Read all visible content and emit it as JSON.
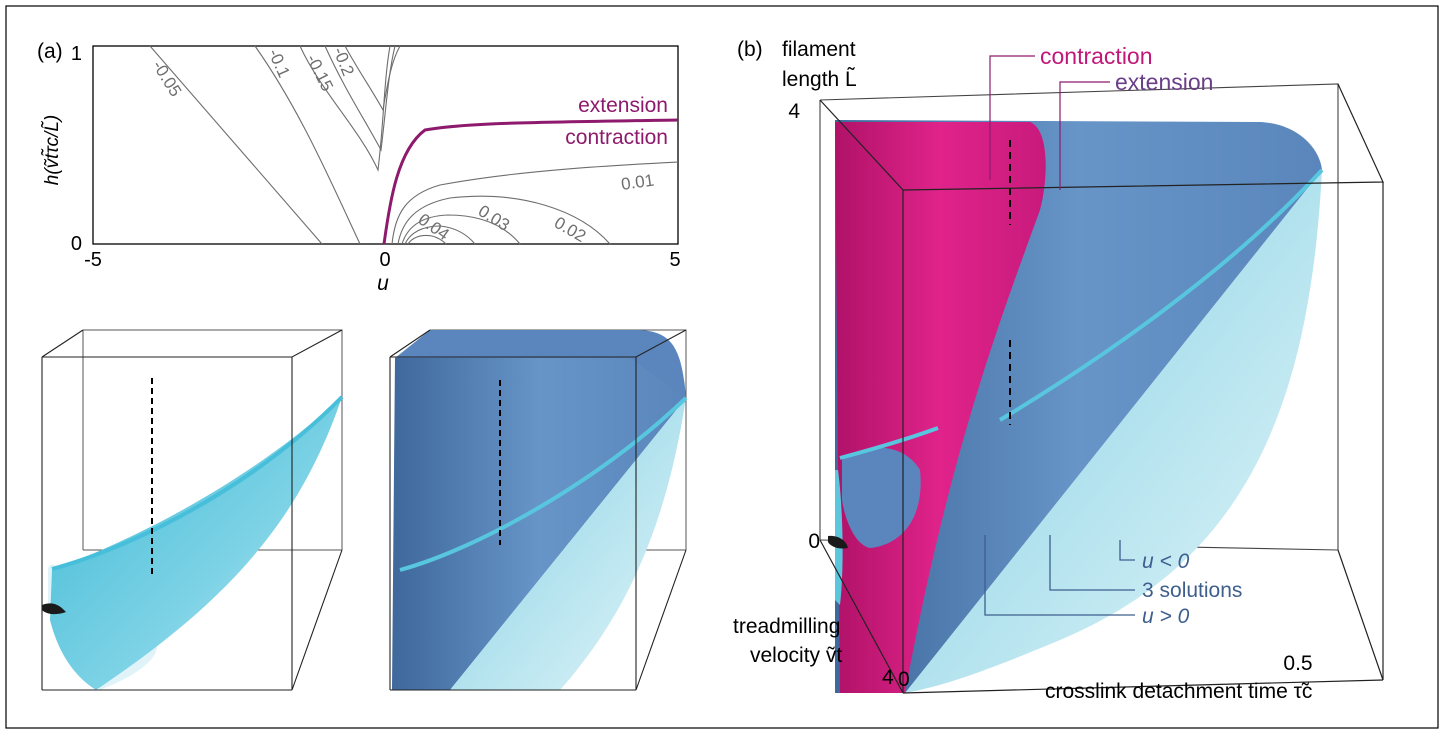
{
  "panel_a": {
    "label": "(a)",
    "y_axis_label": "h(ṽtτ̃c/L̃)",
    "x_axis_label": "u",
    "curve_labels": {
      "extension": "extension",
      "contraction": "contraction"
    },
    "colors": {
      "main_curve": "#8e1a6e",
      "contour": "#7a7a7a"
    }
  },
  "panel_b": {
    "label": "(b)",
    "z_axis_label_line1": "filament",
    "z_axis_label_line2": "length L̃",
    "y_axis_label_line1": "treadmilling",
    "y_axis_label_line2": "velocity ṽt",
    "x_axis_label": "crosslink detachment time τ̃c",
    "tick_z_top": "4",
    "tick_z_bottom": "0",
    "tick_y_front": "4",
    "tick_x_origin": "0",
    "tick_x_mid": "0.5",
    "legend": {
      "contraction": "contraction",
      "extension": "extension",
      "u_neg": "u < 0",
      "three_solutions": "3 solutions",
      "u_pos": "u > 0"
    },
    "colors": {
      "magenta": "#d4197f",
      "blue": "#5b86bd",
      "cyan": "#4cc5df",
      "light_cyan": "#b8e6f0"
    }
  },
  "chart_data": [
    {
      "type": "line",
      "panel": "(a)",
      "xlabel": "u",
      "ylabel": "h(ṽtτ̃c/L̃)",
      "xlim": [
        -5,
        5
      ],
      "ylim": [
        0,
        1
      ],
      "x_ticks": [
        "-5",
        "0",
        "5"
      ],
      "y_ticks": [
        "0",
        "1"
      ],
      "contour_levels": [
        "-0.05",
        "-0.1",
        "-0.15",
        "-0.2",
        "0.01",
        "0.02",
        "0.03",
        "0.04"
      ],
      "series": [
        {
          "name": "extension",
          "x": [
            0,
            0.1,
            0.3,
            0.5,
            1,
            2,
            3,
            4,
            5
          ],
          "y": [
            0,
            0.2,
            0.42,
            0.52,
            0.6,
            0.63,
            0.64,
            0.645,
            0.65
          ]
        }
      ]
    }
  ]
}
